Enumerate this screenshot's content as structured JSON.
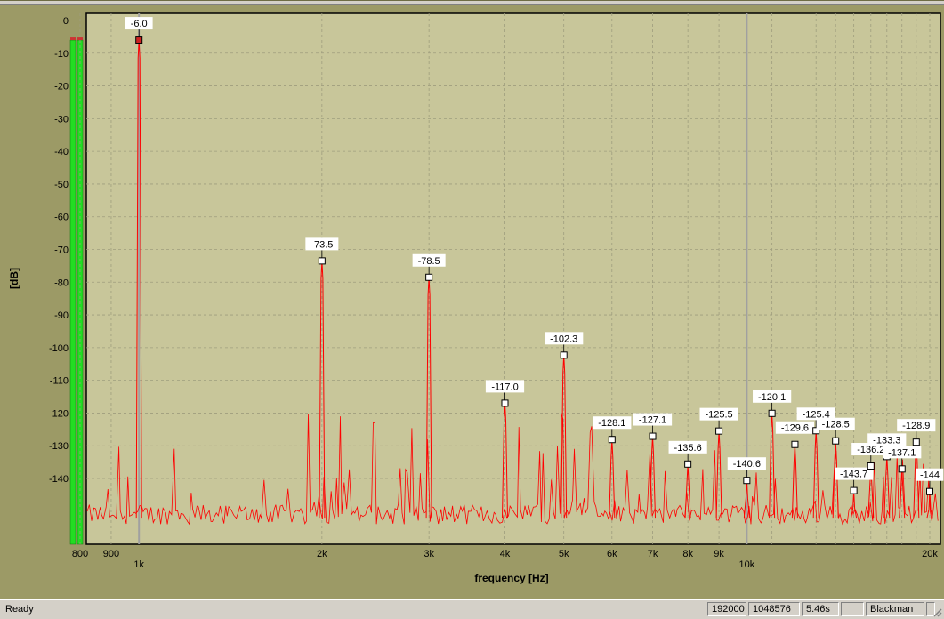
{
  "status": {
    "ready": "Ready",
    "panels": [
      "192000",
      "1048576",
      "5.46s",
      "",
      "Blackman",
      ""
    ]
  },
  "colors": {
    "plot_background": "#c8c69a",
    "trace": "#ff0000",
    "grid": "#9e9d7e",
    "marker_fill_primary": "#cc2222",
    "marker_fill": "#ffffff",
    "meter": "#22dd22"
  },
  "meters": {
    "channels": 2,
    "level_db": -6.0
  },
  "chart_data": {
    "type": "line",
    "xlabel": "frequency [Hz]",
    "ylabel": "[dB]",
    "xscale": "log",
    "xlim": [
      780,
      20200
    ],
    "ylim": [
      -160,
      2
    ],
    "grid": true,
    "y_ticks": [
      0,
      -10,
      -20,
      -30,
      -40,
      -50,
      -60,
      -70,
      -80,
      -90,
      -100,
      -110,
      -120,
      -130,
      -140
    ],
    "x_ticks": [
      {
        "value": 800,
        "label": "800"
      },
      {
        "value": 900,
        "label": "900"
      },
      {
        "value": 1000,
        "label": "1k"
      },
      {
        "value": 2000,
        "label": "2k"
      },
      {
        "value": 3000,
        "label": "3k"
      },
      {
        "value": 4000,
        "label": "4k"
      },
      {
        "value": 5000,
        "label": "5k"
      },
      {
        "value": 6000,
        "label": "6k"
      },
      {
        "value": 7000,
        "label": "7k"
      },
      {
        "value": 8000,
        "label": "8k"
      },
      {
        "value": 9000,
        "label": "9k"
      },
      {
        "value": 10000,
        "label": "10k"
      },
      {
        "value": 20000,
        "label": "20k"
      }
    ],
    "noise_floor_db": -152,
    "harmonics": [
      {
        "freq": 1000,
        "db": -6.0,
        "label": "-6.0"
      },
      {
        "freq": 2000,
        "db": -73.5,
        "label": "-73.5"
      },
      {
        "freq": 3000,
        "db": -78.5,
        "label": "-78.5"
      },
      {
        "freq": 4000,
        "db": -117.0,
        "label": "-117.0"
      },
      {
        "freq": 5000,
        "db": -102.3,
        "label": "-102.3"
      },
      {
        "freq": 6000,
        "db": -128.1,
        "label": "-128.1"
      },
      {
        "freq": 7000,
        "db": -127.1,
        "label": "-127.1"
      },
      {
        "freq": 8000,
        "db": -135.6,
        "label": "-135.6"
      },
      {
        "freq": 9000,
        "db": -125.5,
        "label": "-125.5"
      },
      {
        "freq": 10000,
        "db": -140.6,
        "label": "-140.6"
      },
      {
        "freq": 11000,
        "db": -120.1,
        "label": "-120.1"
      },
      {
        "freq": 12000,
        "db": -129.6,
        "label": "-129.6"
      },
      {
        "freq": 13000,
        "db": -125.4,
        "label": "-125.4"
      },
      {
        "freq": 14000,
        "db": -128.5,
        "label": "-128.5"
      },
      {
        "freq": 15000,
        "db": -143.7,
        "label": "-143.7"
      },
      {
        "freq": 16000,
        "db": -136.2,
        "label": "-136.2"
      },
      {
        "freq": 17000,
        "db": -133.3,
        "label": "-133.3"
      },
      {
        "freq": 18000,
        "db": -137.1,
        "label": "-137.1"
      },
      {
        "freq": 19000,
        "db": -128.9,
        "label": "-128.9"
      },
      {
        "freq": 20000,
        "db": -144.0,
        "label": "-144"
      }
    ]
  }
}
